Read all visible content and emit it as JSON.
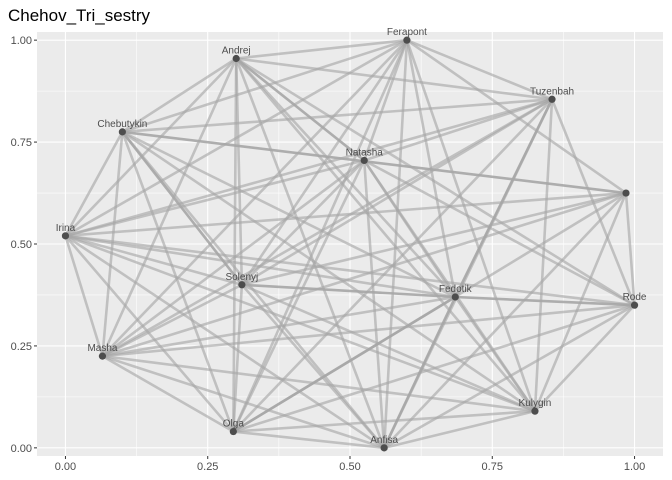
{
  "chart_data": {
    "type": "network",
    "title": "Chehov_Tri_sestry",
    "xlabel": "",
    "ylabel": "",
    "xlim": [
      -0.05,
      1.05
    ],
    "ylim": [
      -0.02,
      1.02
    ],
    "x_ticks": [
      0.0,
      0.25,
      0.5,
      0.75,
      1.0
    ],
    "y_ticks": [
      0.0,
      0.25,
      0.5,
      0.75,
      1.0
    ],
    "x_tick_labels": [
      "0.00",
      "0.25",
      "0.50",
      "0.75",
      "1.00"
    ],
    "y_tick_labels": [
      "0.00",
      "0.25",
      "0.50",
      "0.75",
      "1.00"
    ],
    "grid": true,
    "colors": {
      "panel_background": "#ebebeb",
      "grid_major": "#ffffff",
      "edge": "#a6a6a6",
      "node": "#4d4d4d"
    },
    "nodes": [
      {
        "id": "Ferapont",
        "label": "Ferapont",
        "x": 0.6,
        "y": 1.0
      },
      {
        "id": "Andrej",
        "label": "Andrej",
        "x": 0.3,
        "y": 0.955
      },
      {
        "id": "Tuzenbah",
        "label": "Tuzenbah",
        "x": 0.855,
        "y": 0.855
      },
      {
        "id": "Chebutykin",
        "label": "Chebutykin",
        "x": 0.1,
        "y": 0.775
      },
      {
        "id": "Natasha",
        "label": "Natasha",
        "x": 0.525,
        "y": 0.705
      },
      {
        "id": "Unlabeled",
        "label": "",
        "x": 0.985,
        "y": 0.625
      },
      {
        "id": "Irina",
        "label": "Irina",
        "x": 0.0,
        "y": 0.52
      },
      {
        "id": "Solenyj",
        "label": "Solenyj",
        "x": 0.31,
        "y": 0.4
      },
      {
        "id": "Fedotik",
        "label": "Fedotik",
        "x": 0.685,
        "y": 0.37
      },
      {
        "id": "Rode",
        "label": "Rode",
        "x": 1.0,
        "y": 0.35
      },
      {
        "id": "Masha",
        "label": "Masha",
        "x": 0.065,
        "y": 0.225
      },
      {
        "id": "Kulygin",
        "label": "Kulygin",
        "x": 0.825,
        "y": 0.09
      },
      {
        "id": "Olga",
        "label": "Olga",
        "x": 0.295,
        "y": 0.04
      },
      {
        "id": "Anfisa",
        "label": "Anfisa",
        "x": 0.56,
        "y": 0.0
      }
    ],
    "edges": [
      {
        "source": "Ferapont",
        "target": "Andrej",
        "weight": 1
      },
      {
        "source": "Ferapont",
        "target": "Tuzenbah",
        "weight": 1
      },
      {
        "source": "Ferapont",
        "target": "Chebutykin",
        "weight": 1
      },
      {
        "source": "Ferapont",
        "target": "Natasha",
        "weight": 1
      },
      {
        "source": "Ferapont",
        "target": "Unlabeled",
        "weight": 1
      },
      {
        "source": "Ferapont",
        "target": "Irina",
        "weight": 1
      },
      {
        "source": "Ferapont",
        "target": "Solenyj",
        "weight": 1
      },
      {
        "source": "Ferapont",
        "target": "Fedotik",
        "weight": 1
      },
      {
        "source": "Ferapont",
        "target": "Masha",
        "weight": 1
      },
      {
        "source": "Ferapont",
        "target": "Kulygin",
        "weight": 1
      },
      {
        "source": "Ferapont",
        "target": "Olga",
        "weight": 1
      },
      {
        "source": "Ferapont",
        "target": "Anfisa",
        "weight": 1
      },
      {
        "source": "Andrej",
        "target": "Tuzenbah",
        "weight": 1
      },
      {
        "source": "Andrej",
        "target": "Chebutykin",
        "weight": 1
      },
      {
        "source": "Andrej",
        "target": "Natasha",
        "weight": 2
      },
      {
        "source": "Andrej",
        "target": "Irina",
        "weight": 1
      },
      {
        "source": "Andrej",
        "target": "Solenyj",
        "weight": 1
      },
      {
        "source": "Andrej",
        "target": "Fedotik",
        "weight": 1
      },
      {
        "source": "Andrej",
        "target": "Rode",
        "weight": 1
      },
      {
        "source": "Andrej",
        "target": "Masha",
        "weight": 1
      },
      {
        "source": "Andrej",
        "target": "Kulygin",
        "weight": 1
      },
      {
        "source": "Andrej",
        "target": "Olga",
        "weight": 1
      },
      {
        "source": "Andrej",
        "target": "Anfisa",
        "weight": 1
      },
      {
        "source": "Tuzenbah",
        "target": "Chebutykin",
        "weight": 1
      },
      {
        "source": "Tuzenbah",
        "target": "Natasha",
        "weight": 1
      },
      {
        "source": "Tuzenbah",
        "target": "Rode",
        "weight": 1
      },
      {
        "source": "Tuzenbah",
        "target": "Irina",
        "weight": 1
      },
      {
        "source": "Tuzenbah",
        "target": "Solenyj",
        "weight": 1
      },
      {
        "source": "Tuzenbah",
        "target": "Fedotik",
        "weight": 2
      },
      {
        "source": "Tuzenbah",
        "target": "Masha",
        "weight": 1
      },
      {
        "source": "Tuzenbah",
        "target": "Kulygin",
        "weight": 1
      },
      {
        "source": "Tuzenbah",
        "target": "Olga",
        "weight": 1
      },
      {
        "source": "Tuzenbah",
        "target": "Anfisa",
        "weight": 1
      },
      {
        "source": "Chebutykin",
        "target": "Unlabeled",
        "weight": 2
      },
      {
        "source": "Chebutykin",
        "target": "Irina",
        "weight": 1
      },
      {
        "source": "Chebutykin",
        "target": "Solenyj",
        "weight": 2
      },
      {
        "source": "Chebutykin",
        "target": "Fedotik",
        "weight": 1
      },
      {
        "source": "Chebutykin",
        "target": "Masha",
        "weight": 1
      },
      {
        "source": "Chebutykin",
        "target": "Kulygin",
        "weight": 1
      },
      {
        "source": "Chebutykin",
        "target": "Olga",
        "weight": 1
      },
      {
        "source": "Chebutykin",
        "target": "Anfisa",
        "weight": 1
      },
      {
        "source": "Natasha",
        "target": "Irina",
        "weight": 1
      },
      {
        "source": "Natasha",
        "target": "Solenyj",
        "weight": 1
      },
      {
        "source": "Natasha",
        "target": "Rode",
        "weight": 1
      },
      {
        "source": "Natasha",
        "target": "Fedotik",
        "weight": 1
      },
      {
        "source": "Natasha",
        "target": "Masha",
        "weight": 1
      },
      {
        "source": "Natasha",
        "target": "Kulygin",
        "weight": 1
      },
      {
        "source": "Natasha",
        "target": "Olga",
        "weight": 1
      },
      {
        "source": "Natasha",
        "target": "Anfisa",
        "weight": 1
      },
      {
        "source": "Unlabeled",
        "target": "Irina",
        "weight": 1
      },
      {
        "source": "Unlabeled",
        "target": "Masha",
        "weight": 1
      },
      {
        "source": "Unlabeled",
        "target": "Solenyj",
        "weight": 1
      },
      {
        "source": "Unlabeled",
        "target": "Rode",
        "weight": 1
      },
      {
        "source": "Unlabeled",
        "target": "Kulygin",
        "weight": 1
      },
      {
        "source": "Unlabeled",
        "target": "Anfisa",
        "weight": 1
      },
      {
        "source": "Unlabeled",
        "target": "Olga",
        "weight": 1
      },
      {
        "source": "Irina",
        "target": "Solenyj",
        "weight": 1
      },
      {
        "source": "Irina",
        "target": "Fedotik",
        "weight": 1
      },
      {
        "source": "Irina",
        "target": "Rode",
        "weight": 1
      },
      {
        "source": "Irina",
        "target": "Masha",
        "weight": 1
      },
      {
        "source": "Irina",
        "target": "Kulygin",
        "weight": 1
      },
      {
        "source": "Irina",
        "target": "Olga",
        "weight": 1
      },
      {
        "source": "Irina",
        "target": "Anfisa",
        "weight": 1
      },
      {
        "source": "Solenyj",
        "target": "Fedotik",
        "weight": 2
      },
      {
        "source": "Solenyj",
        "target": "Masha",
        "weight": 1
      },
      {
        "source": "Solenyj",
        "target": "Kulygin",
        "weight": 1
      },
      {
        "source": "Solenyj",
        "target": "Olga",
        "weight": 1
      },
      {
        "source": "Solenyj",
        "target": "Anfisa",
        "weight": 1
      },
      {
        "source": "Fedotik",
        "target": "Rode",
        "weight": 2
      },
      {
        "source": "Fedotik",
        "target": "Masha",
        "weight": 1
      },
      {
        "source": "Fedotik",
        "target": "Kulygin",
        "weight": 1
      },
      {
        "source": "Fedotik",
        "target": "Olga",
        "weight": 2
      },
      {
        "source": "Fedotik",
        "target": "Anfisa",
        "weight": 2
      },
      {
        "source": "Rode",
        "target": "Masha",
        "weight": 1
      },
      {
        "source": "Rode",
        "target": "Kulygin",
        "weight": 1
      },
      {
        "source": "Rode",
        "target": "Olga",
        "weight": 1
      },
      {
        "source": "Rode",
        "target": "Anfisa",
        "weight": 1
      },
      {
        "source": "Masha",
        "target": "Kulygin",
        "weight": 1
      },
      {
        "source": "Masha",
        "target": "Olga",
        "weight": 1
      },
      {
        "source": "Masha",
        "target": "Anfisa",
        "weight": 1
      },
      {
        "source": "Kulygin",
        "target": "Olga",
        "weight": 1
      },
      {
        "source": "Kulygin",
        "target": "Anfisa",
        "weight": 1
      },
      {
        "source": "Olga",
        "target": "Anfisa",
        "weight": 1
      }
    ]
  }
}
